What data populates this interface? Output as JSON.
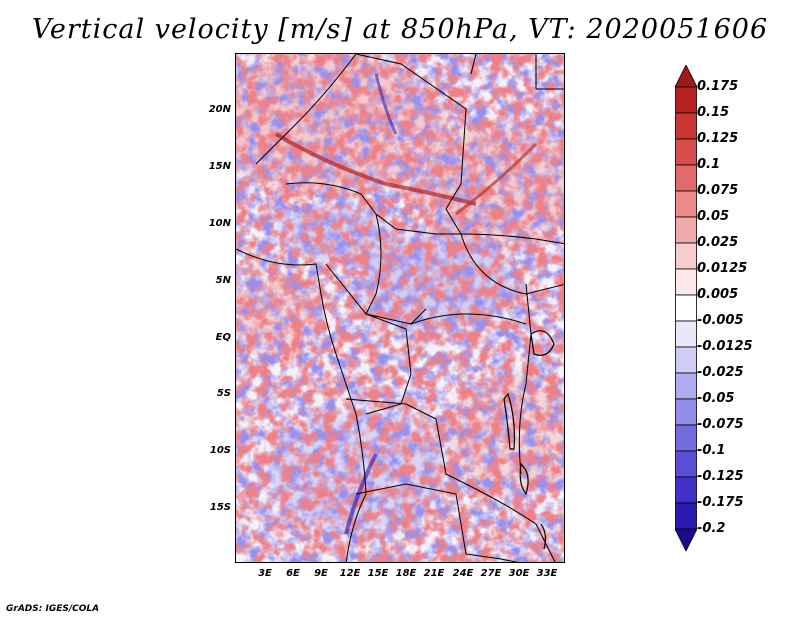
{
  "title": "Vertical velocity [m/s] at 850hPa, VT: 2020051606",
  "latitude_labels": [
    "20N",
    "15N",
    "10N",
    "5N",
    "EQ",
    "5S",
    "10S",
    "15S"
  ],
  "longitude_labels": [
    "3E",
    "6E",
    "9E",
    "12E",
    "15E",
    "18E",
    "21E",
    "24E",
    "27E",
    "30E",
    "33E"
  ],
  "colorbar": {
    "labels": [
      "0.175",
      "0.15",
      "0.125",
      "0.1",
      "0.075",
      "0.05",
      "0.025",
      "0.0125",
      "0.005",
      "-0.005",
      "-0.0125",
      "-0.025",
      "-0.05",
      "-0.075",
      "-0.1",
      "-0.125",
      "-0.175",
      "-0.2"
    ],
    "colors": [
      "#a01919",
      "#b82121",
      "#c93636",
      "#d84d4d",
      "#e26a6a",
      "#ea8a8a",
      "#f1aaaa",
      "#f7cccc",
      "#fbe8e8",
      "#ffffff",
      "#e8e8f9",
      "#cfcdf6",
      "#b0acf0",
      "#928de9",
      "#736be0",
      "#5a4ed6",
      "#4131c8",
      "#2a1ab2",
      "#1a0c8c"
    ]
  },
  "credit": "GrADS: IGES/COLA"
}
